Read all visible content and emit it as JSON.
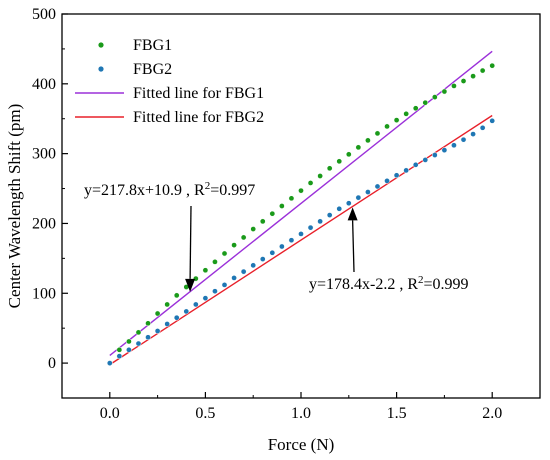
{
  "chart_data": {
    "type": "scatter",
    "title": "",
    "xlabel": "Force (N)",
    "ylabel": "Center Wavelength Shift (pm)",
    "xlim": [
      -0.25,
      2.25
    ],
    "ylim": [
      -50,
      500
    ],
    "x_ticks": [
      "0.0",
      "0.5",
      "1.0",
      "1.5",
      "2.0"
    ],
    "y_ticks": [
      "0",
      "100",
      "200",
      "300",
      "400",
      "500"
    ],
    "grid": false,
    "legend_position": "top-left",
    "series": [
      {
        "name": "FBG1",
        "kind": "scatter",
        "color": "#1a9a1a",
        "x": [
          0.0,
          0.05,
          0.1,
          0.15,
          0.2,
          0.25,
          0.3,
          0.35,
          0.4,
          0.45,
          0.5,
          0.55,
          0.6,
          0.65,
          0.7,
          0.75,
          0.8,
          0.85,
          0.9,
          0.95,
          1.0,
          1.05,
          1.1,
          1.15,
          1.2,
          1.25,
          1.3,
          1.35,
          1.4,
          1.45,
          1.5,
          1.55,
          1.6,
          1.65,
          1.7,
          1.75,
          1.8,
          1.85,
          1.9,
          1.95,
          2.0
        ],
        "y": [
          0,
          19,
          31,
          44,
          57,
          71,
          84,
          97,
          109,
          121,
          133,
          145,
          157,
          169,
          180,
          192,
          203,
          214,
          225,
          236,
          247,
          258,
          268,
          279,
          289,
          299,
          309,
          319,
          329,
          339,
          348,
          357,
          365,
          373,
          381,
          389,
          397,
          404,
          411,
          419,
          426
        ]
      },
      {
        "name": "FBG2",
        "kind": "scatter",
        "color": "#1f77b4",
        "x": [
          0.0,
          0.05,
          0.1,
          0.15,
          0.2,
          0.25,
          0.3,
          0.35,
          0.4,
          0.45,
          0.5,
          0.55,
          0.6,
          0.65,
          0.7,
          0.75,
          0.8,
          0.85,
          0.9,
          0.95,
          1.0,
          1.05,
          1.1,
          1.15,
          1.2,
          1.25,
          1.3,
          1.35,
          1.4,
          1.45,
          1.5,
          1.55,
          1.6,
          1.65,
          1.7,
          1.75,
          1.8,
          1.85,
          1.9,
          1.95,
          2.0
        ],
        "y": [
          0,
          10,
          19,
          28,
          37,
          46,
          56,
          65,
          74,
          84,
          93,
          103,
          112,
          122,
          131,
          140,
          149,
          158,
          167,
          176,
          185,
          194,
          203,
          212,
          221,
          229,
          237,
          245,
          253,
          261,
          269,
          276,
          284,
          291,
          298,
          305,
          312,
          320,
          328,
          337,
          347
        ]
      },
      {
        "name": "Fitted line for FBG1",
        "kind": "line",
        "color": "#9b30d9",
        "slope": 217.8,
        "intercept": 10.9,
        "x_range": [
          0.0,
          2.0
        ]
      },
      {
        "name": "Fitted line for FBG2",
        "kind": "line",
        "color": "#e8202a",
        "slope": 178.4,
        "intercept": -2.2,
        "x_range": [
          0.0,
          2.0
        ]
      }
    ],
    "annotations": [
      {
        "label": "fbg1-equation",
        "text_main": "y=217.8x+10.9 , R",
        "text_sup": "2",
        "text_tail": "=0.997",
        "arrow_to": [
          0.42,
          102
        ],
        "arrow_direction": "down"
      },
      {
        "label": "fbg2-equation",
        "text_main": "y=178.4x-2.2 , R",
        "text_sup": "2",
        "text_tail": "=0.999",
        "arrow_to": [
          1.27,
          223
        ],
        "arrow_direction": "up"
      }
    ]
  }
}
